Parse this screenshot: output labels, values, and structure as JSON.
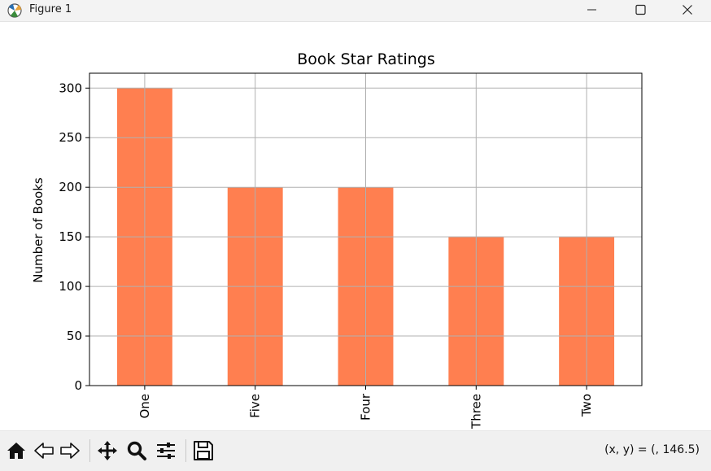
{
  "window": {
    "title": "Figure 1",
    "controls": {
      "minimize": "minimize",
      "maximize": "maximize",
      "close": "close"
    }
  },
  "chart_data": {
    "type": "bar",
    "title": "Book Star Ratings",
    "xlabel": "",
    "ylabel": "Number of Books",
    "categories": [
      "One",
      "Five",
      "Four",
      "Three",
      "Two"
    ],
    "values": [
      300,
      200,
      200,
      150,
      150
    ],
    "ylim": [
      0,
      315
    ],
    "yticks": [
      0,
      50,
      100,
      150,
      200,
      250,
      300
    ],
    "bar_color": "#ff7f50",
    "grid": true,
    "xtick_rotation": 90
  },
  "toolbar": {
    "coords_text": "(x, y) = (, 146.5)",
    "icons": [
      "home-icon",
      "back-icon",
      "forward-icon",
      "pan-icon",
      "zoom-icon",
      "configure-icon",
      "save-icon"
    ]
  },
  "colors": {
    "bar": "#ff7f50",
    "grid": "#b0b0b0",
    "toolbar_bg": "#f0f0f0"
  }
}
